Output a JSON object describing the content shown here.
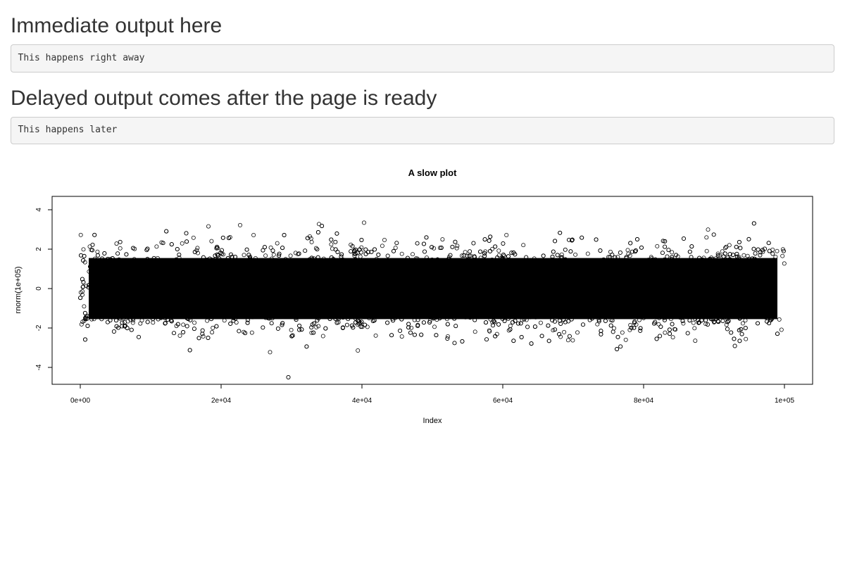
{
  "sections": [
    {
      "heading": "Immediate output here",
      "output": "This happens right away"
    },
    {
      "heading": "Delayed output comes after the page is ready",
      "output": "This happens later"
    }
  ],
  "chart_data": {
    "type": "scatter",
    "title": "A slow plot",
    "xlabel": "Index",
    "ylabel": "rnorm(1e+05)",
    "n_points": 100000,
    "x_range": [
      1,
      100000
    ],
    "y_range": [
      -4.5,
      4.35
    ],
    "distribution": "standard normal (mean 0, sd 1)",
    "x_ticks": [
      {
        "value": 0,
        "label": "0e+00"
      },
      {
        "value": 20000,
        "label": "2e+04"
      },
      {
        "value": 40000,
        "label": "4e+04"
      },
      {
        "value": 60000,
        "label": "6e+04"
      },
      {
        "value": 80000,
        "label": "8e+04"
      },
      {
        "value": 100000,
        "label": "1e+05"
      }
    ],
    "y_ticks": [
      {
        "value": -4,
        "label": "-4"
      },
      {
        "value": -2,
        "label": "-2"
      },
      {
        "value": 0,
        "label": "0"
      },
      {
        "value": 2,
        "label": "2"
      },
      {
        "value": 4,
        "label": "4"
      }
    ],
    "marker": "open circle",
    "color": "#000000",
    "grid": false,
    "legend": "none"
  }
}
